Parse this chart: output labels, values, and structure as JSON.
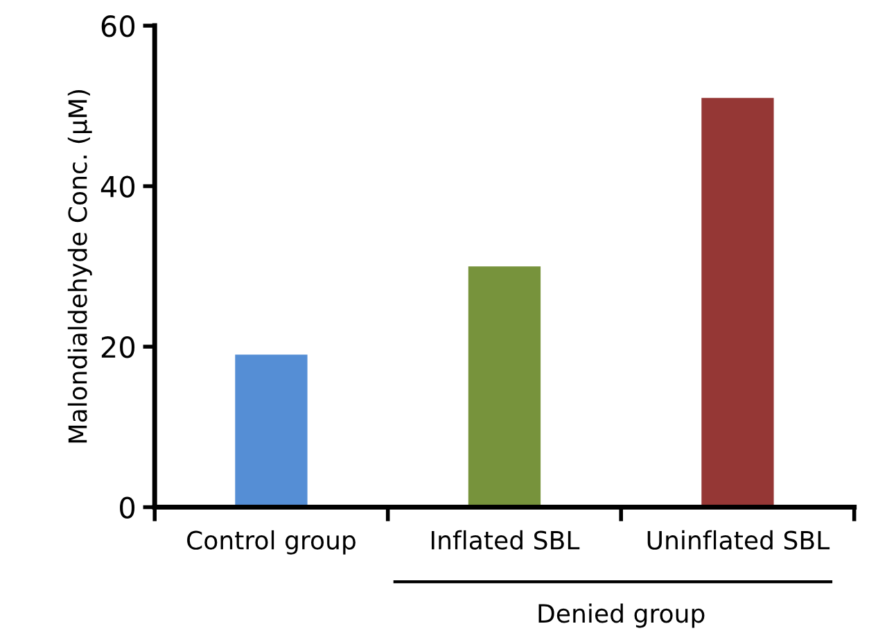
{
  "chart_data": {
    "type": "bar",
    "ylabel": "Malondialdehyde Conc. (μM)",
    "categories": [
      "Control group",
      "Inflated SBL",
      "Uninflated SBL"
    ],
    "values": [
      19,
      30,
      51
    ],
    "colors": [
      "#558ed5",
      "#77933c",
      "#953735"
    ],
    "ylim": [
      0,
      60
    ],
    "yticks": [
      0,
      20,
      40,
      60
    ],
    "grid": false,
    "legend": false,
    "annotations": [
      "Denied group"
    ]
  }
}
